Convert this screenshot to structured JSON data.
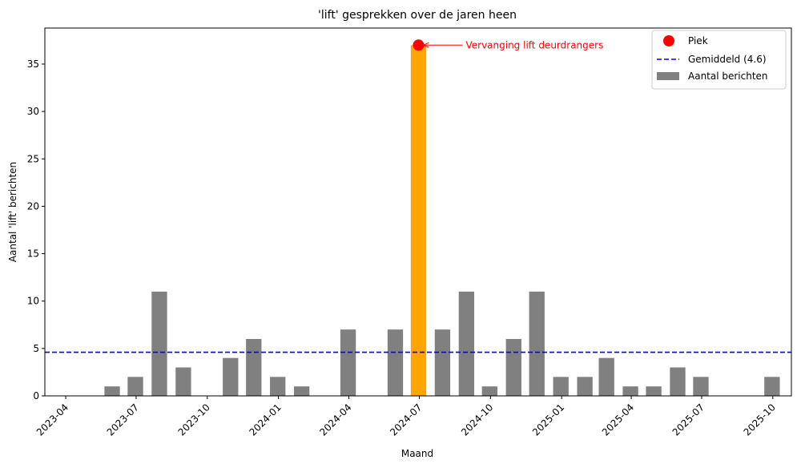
{
  "chart_data": {
    "type": "bar",
    "title": "'lift' gesprekken over de jaren heen",
    "xlabel": "Maand",
    "ylabel": "Aantal 'lift' berichten",
    "ylim": [
      0,
      38.8
    ],
    "yticks": [
      0,
      5,
      10,
      15,
      20,
      25,
      30,
      35
    ],
    "xlim": [
      "2023-03-05",
      "2025-10-25"
    ],
    "xticks": [
      {
        "date": "2023-04-01",
        "label": "2023-04"
      },
      {
        "date": "2023-07-01",
        "label": "2023-07"
      },
      {
        "date": "2023-10-01",
        "label": "2023-10"
      },
      {
        "date": "2024-01-01",
        "label": "2024-01"
      },
      {
        "date": "2024-04-01",
        "label": "2024-04"
      },
      {
        "date": "2024-07-01",
        "label": "2024-07"
      },
      {
        "date": "2024-10-01",
        "label": "2024-10"
      },
      {
        "date": "2025-01-01",
        "label": "2025-01"
      },
      {
        "date": "2025-04-01",
        "label": "2025-04"
      },
      {
        "date": "2025-07-01",
        "label": "2025-07"
      },
      {
        "date": "2025-10-01",
        "label": "2025-10"
      }
    ],
    "series": [
      {
        "name": "Aantal berichten",
        "color": "#808080",
        "highlight_color": "#ffa500",
        "points": [
          {
            "x": "2023-05",
            "y": 1
          },
          {
            "x": "2023-06",
            "y": 2
          },
          {
            "x": "2023-07",
            "y": 11
          },
          {
            "x": "2023-08",
            "y": 3
          },
          {
            "x": "2023-10",
            "y": 4
          },
          {
            "x": "2023-11",
            "y": 6
          },
          {
            "x": "2023-12",
            "y": 2
          },
          {
            "x": "2024-01",
            "y": 1
          },
          {
            "x": "2024-03",
            "y": 7
          },
          {
            "x": "2024-05",
            "y": 7
          },
          {
            "x": "2024-06",
            "y": 37,
            "highlight": true
          },
          {
            "x": "2024-07",
            "y": 7
          },
          {
            "x": "2024-08",
            "y": 11
          },
          {
            "x": "2024-09",
            "y": 1
          },
          {
            "x": "2024-10",
            "y": 6
          },
          {
            "x": "2024-11",
            "y": 11
          },
          {
            "x": "2024-12",
            "y": 2
          },
          {
            "x": "2025-01",
            "y": 2
          },
          {
            "x": "2025-02",
            "y": 4
          },
          {
            "x": "2025-03",
            "y": 1
          },
          {
            "x": "2025-04",
            "y": 1
          },
          {
            "x": "2025-05",
            "y": 3
          },
          {
            "x": "2025-06",
            "y": 2
          },
          {
            "x": "2025-09",
            "y": 2
          }
        ]
      }
    ],
    "mean_line": {
      "name": "Gemiddeld (4.6)",
      "value": 4.6,
      "color": "#0000ff"
    },
    "peak": {
      "name": "Piek",
      "x": "2024-06",
      "y": 37,
      "color": "#ff0000"
    },
    "annotation": {
      "text": "Vervanging lift deurdrangers",
      "color": "#ff0000"
    },
    "legend": {
      "position": "top-right",
      "entries": [
        "Piek",
        "Gemiddeld (4.6)",
        "Aantal berichten"
      ]
    },
    "grid": false
  }
}
